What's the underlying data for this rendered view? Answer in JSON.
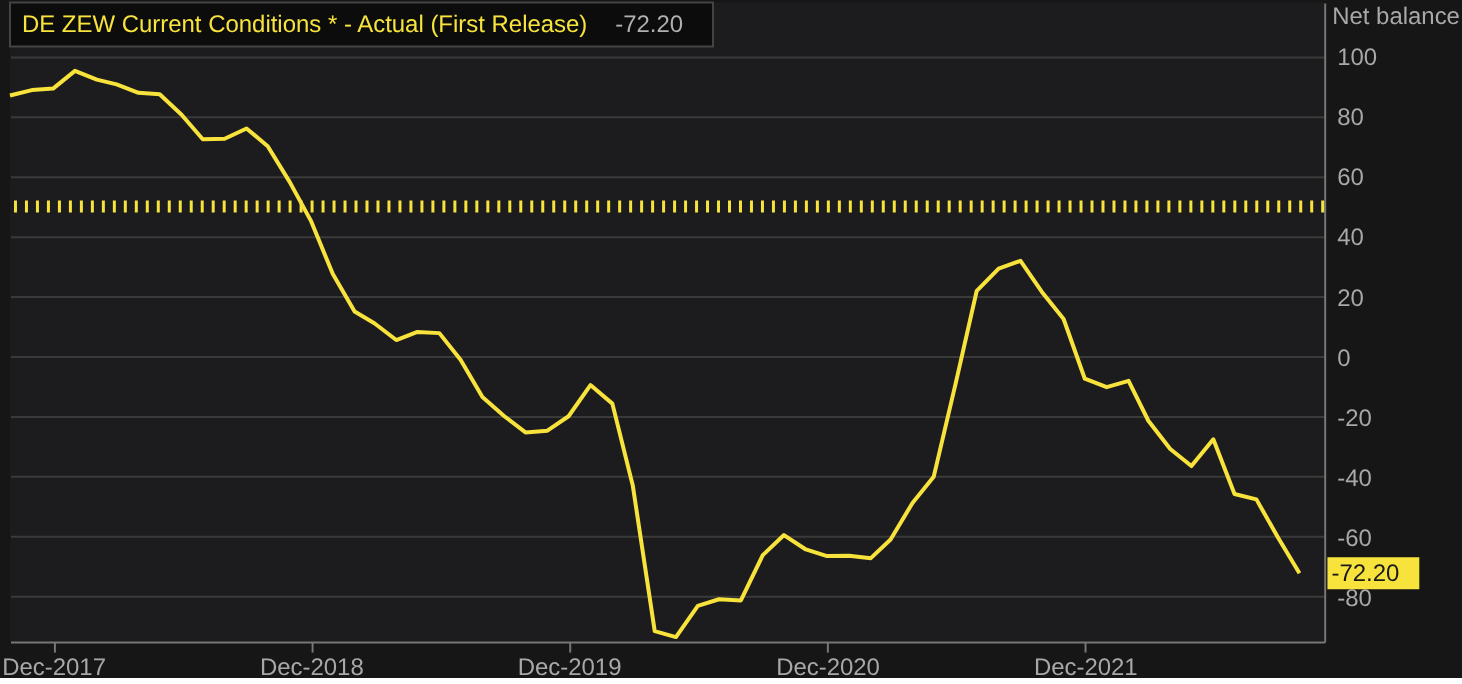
{
  "chart_data": {
    "type": "line",
    "title": "DE ZEW Current Conditions * - Actual (First Release)",
    "ylabel": "Net balance",
    "annotations": [
      "-72.20",
      {
        "text": "-72.20",
        "x": "2022-10",
        "y": -72.2
      }
    ],
    "x": [
      "2017-10",
      "2017-11",
      "2017-12",
      "2018-01",
      "2018-02",
      "2018-03",
      "2018-04",
      "2018-05",
      "2018-06",
      "2018-07",
      "2018-08",
      "2018-09",
      "2018-10",
      "2018-11",
      "2018-12",
      "2019-01",
      "2019-02",
      "2019-03",
      "2019-04",
      "2019-05",
      "2019-06",
      "2019-07",
      "2019-08",
      "2019-09",
      "2019-10",
      "2019-11",
      "2019-12",
      "2020-01",
      "2020-02",
      "2020-03",
      "2020-04",
      "2020-05",
      "2020-06",
      "2020-07",
      "2020-08",
      "2020-09",
      "2020-10",
      "2020-11",
      "2020-12",
      "2021-01",
      "2021-02",
      "2021-03",
      "2021-04",
      "2021-05",
      "2021-06",
      "2021-07",
      "2021-08",
      "2021-09",
      "2021-10",
      "2021-11",
      "2021-12",
      "2022-01",
      "2022-02",
      "2022-03",
      "2022-04",
      "2022-05",
      "2022-06",
      "2022-07",
      "2022-08",
      "2022-09",
      "2022-10"
    ],
    "series": [
      {
        "color": "#f7e33c",
        "values": [
          87.0,
          88.8,
          89.3,
          95.2,
          92.3,
          90.7,
          87.9,
          87.4,
          80.6,
          72.4,
          72.6,
          76.0,
          70.1,
          58.2,
          45.3,
          27.6,
          15.0,
          11.1,
          5.5,
          8.2,
          7.8,
          -1.1,
          -13.5,
          -19.9,
          -25.3,
          -24.7,
          -19.9,
          -9.5,
          -15.7,
          -43.1,
          -91.5,
          -93.5,
          -83.1,
          -80.9,
          -81.3,
          -66.2,
          -59.5,
          -64.3,
          -66.5,
          -66.4,
          -67.2,
          -61.0,
          -48.8,
          -40.1,
          -9.1,
          21.9,
          29.3,
          31.9,
          21.6,
          12.5,
          -7.4,
          -10.2,
          -8.1,
          -21.4,
          -30.8,
          -36.5,
          -27.6,
          -45.8,
          -47.6,
          -60.5,
          -72.2
        ]
      }
    ],
    "xlim": [
      "2017-10-01",
      "2022-11-05"
    ],
    "xticks": [
      {
        "value": "2017-12",
        "label": "Dec-2017"
      },
      {
        "value": "2018-12",
        "label": "Dec-2018"
      },
      {
        "value": "2019-12",
        "label": "Dec-2019"
      },
      {
        "value": "2020-12",
        "label": "Dec-2020"
      },
      {
        "value": "2021-12",
        "label": "Dec-2021"
      }
    ],
    "ylim": [
      -95,
      118
    ],
    "yticks": [
      -80,
      -60,
      -40,
      -20,
      0,
      20,
      40,
      60,
      80,
      100
    ],
    "ref_lines": [
      {
        "axis": "y",
        "value": 50,
        "color": "#f7e33c",
        "line_style": "dotted"
      }
    ],
    "grid": "y",
    "marker": "none",
    "line_style": "solid"
  }
}
